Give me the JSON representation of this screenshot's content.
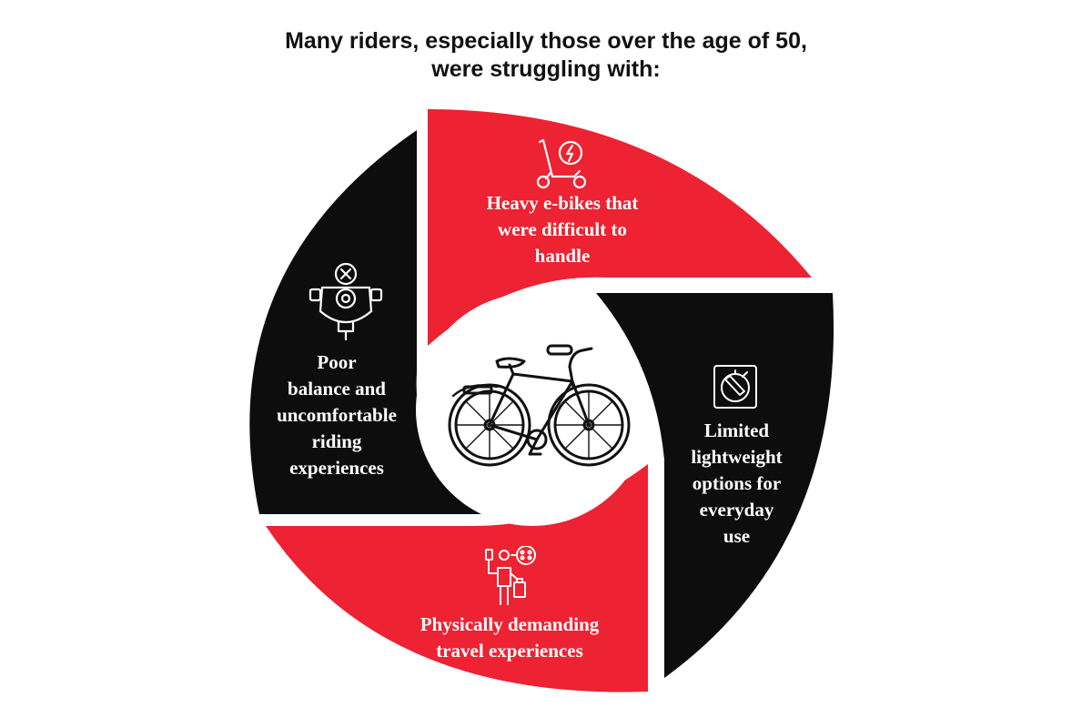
{
  "heading": {
    "line1": "Many riders, especially those over the age of 50,",
    "line2": "were struggling with:"
  },
  "colors": {
    "red": "#ed2232",
    "black": "#0d0d0d",
    "white": "#ffffff"
  },
  "segments": [
    {
      "id": "top",
      "color": "red",
      "icon": "electric-scooter-icon",
      "lines": [
        "Heavy e-bikes that",
        "were difficult to",
        "handle"
      ]
    },
    {
      "id": "right",
      "color": "black",
      "icon": "battery-gauge-icon",
      "lines": [
        "Limited",
        "lightweight",
        "options for",
        "everyday",
        "use"
      ]
    },
    {
      "id": "bottom",
      "color": "red",
      "icon": "traveler-with-luggage-icon",
      "lines": [
        "Physically demanding",
        "travel experiences"
      ]
    },
    {
      "id": "left",
      "color": "black",
      "icon": "handlebar-scooter-icon",
      "lines": [
        "Poor",
        "balance and",
        "uncomfortable",
        "riding",
        "experiences"
      ]
    }
  ],
  "center": {
    "icon": "bicycle-icon"
  }
}
